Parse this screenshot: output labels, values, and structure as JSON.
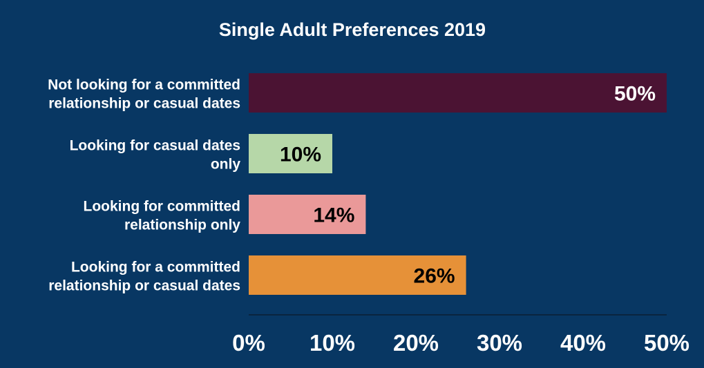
{
  "chart_data": {
    "type": "bar",
    "orientation": "horizontal",
    "title": "Single Adult Preferences 2019",
    "categories": [
      [
        "Not looking for a committed",
        "relationship or casual dates"
      ],
      [
        "Looking for casual dates",
        "only"
      ],
      [
        "Looking for committed",
        "relationship only"
      ],
      [
        "Looking for a committed",
        "relationship or casual dates"
      ]
    ],
    "values": [
      50,
      10,
      14,
      26
    ],
    "value_labels": [
      "50%",
      "10%",
      "14%",
      "26%"
    ],
    "colors": [
      "#4b1333",
      "#b6d7a8",
      "#ea9999",
      "#e69138"
    ],
    "label_colors": [
      "#ffffff",
      "#000000",
      "#000000",
      "#000000"
    ],
    "xlim": [
      0,
      50
    ],
    "xticks": [
      0,
      10,
      20,
      30,
      40,
      50
    ],
    "xtick_labels": [
      "0%",
      "10%",
      "20%",
      "30%",
      "40%",
      "50%"
    ],
    "xlabel": "",
    "ylabel": "",
    "grid": false,
    "legend": "none"
  }
}
